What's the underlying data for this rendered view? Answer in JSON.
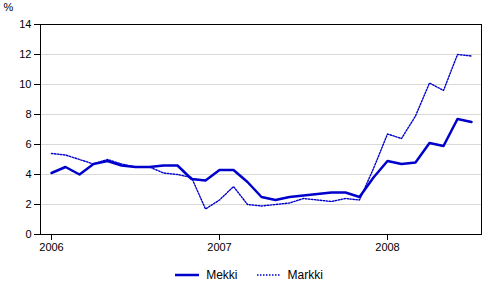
{
  "chart_data": {
    "type": "line",
    "ylabel": "%",
    "categories": [
      "2006",
      null,
      null,
      null,
      null,
      null,
      null,
      null,
      null,
      null,
      null,
      null,
      "2007",
      null,
      null,
      null,
      null,
      null,
      null,
      null,
      null,
      null,
      null,
      null,
      "2008",
      null,
      null,
      null,
      null,
      null,
      null
    ],
    "series": [
      {
        "name": "Mekki",
        "color": "#0000cc",
        "line_style": "solid",
        "values": [
          4.1,
          4.5,
          4.0,
          4.7,
          4.9,
          4.6,
          4.5,
          4.5,
          4.6,
          4.6,
          3.7,
          3.6,
          4.3,
          4.3,
          3.5,
          2.5,
          2.3,
          2.5,
          2.6,
          2.7,
          2.8,
          2.8,
          2.5,
          3.8,
          4.9,
          4.7,
          4.8,
          6.1,
          5.9,
          7.7,
          7.5
        ]
      },
      {
        "name": "Markki",
        "color": "#0000cc",
        "line_style": "dotted",
        "values": [
          5.4,
          5.3,
          5.0,
          4.7,
          5.0,
          4.7,
          4.5,
          4.5,
          4.1,
          4.0,
          3.8,
          1.7,
          2.3,
          3.2,
          2.0,
          1.9,
          2.0,
          2.1,
          2.4,
          2.3,
          2.2,
          2.4,
          2.3,
          4.4,
          6.7,
          6.4,
          7.9,
          10.1,
          9.6,
          12.0,
          11.9
        ]
      }
    ],
    "ylim": [
      0,
      14
    ],
    "yticks": [
      0,
      2,
      4,
      6,
      8,
      10,
      12,
      14
    ],
    "grid": true,
    "legend": "bottom"
  }
}
